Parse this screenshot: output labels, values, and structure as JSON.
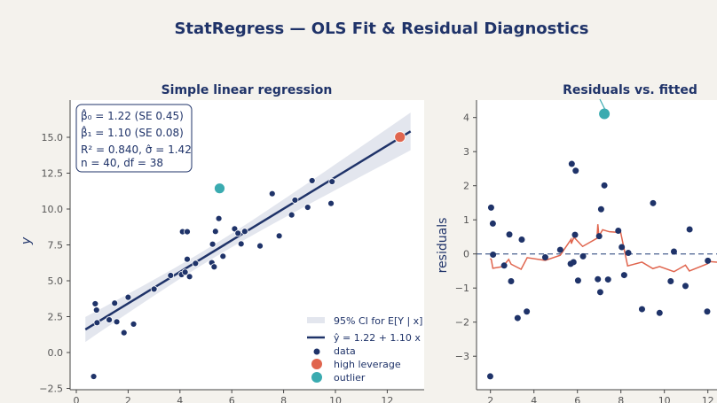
{
  "title": "StatRegress — OLS Fit & Residual Diagnostics",
  "colors": {
    "navy": "#1f3369",
    "high_leverage": "#e0654e",
    "outlier": "#3aabb0",
    "band": "#e3e6ee",
    "lowess": "#e0654e",
    "background": "#f4f2ed"
  },
  "chart_data": [
    {
      "type": "scatter",
      "title": "Simple linear regression",
      "xlabel": "",
      "ylabel": "y",
      "xlim": [
        -0.3,
        13.6
      ],
      "ylim": [
        -2.6,
        17.6
      ],
      "xticks": [
        "0",
        "2",
        "4",
        "6",
        "8",
        "10",
        "12"
      ],
      "xtick_values": [
        0,
        2,
        4,
        6,
        8,
        10,
        12
      ],
      "yticks": [
        "−2.5",
        "0.0",
        "2.5",
        "5.0",
        "7.5",
        "10.0",
        "12.5",
        "15.0"
      ],
      "ytick_values": [
        -2.5,
        0,
        2.5,
        5,
        7.5,
        10,
        12.5,
        15
      ],
      "stats_box": [
        "β̂₀ = 1.22 (SE 0.45)",
        "β̂₁ = 1.10 (SE 0.08)",
        "R² = 0.840,  σ̂ = 1.42",
        "n = 40,  df = 38"
      ],
      "fit": {
        "intercept": 1.22,
        "slope": 1.1,
        "sigma": 1.42,
        "x_range": [
          0.35,
          12.9
        ]
      },
      "legend": [
        "95% CI for E[Y | x]",
        "ŷ = 1.22 + 1.10 x",
        "data",
        "high leverage",
        "outlier"
      ],
      "legend_position": "lower-right",
      "series": [
        {
          "name": "data",
          "points": [
            [
              0.73,
              3.4
            ],
            [
              0.78,
              2.96
            ],
            [
              0.8,
              2.08
            ],
            [
              0.67,
              -1.67
            ],
            [
              1.27,
              2.28
            ],
            [
              1.48,
              3.44
            ],
            [
              1.56,
              2.14
            ],
            [
              1.84,
              1.38
            ],
            [
              2.0,
              3.85
            ],
            [
              2.21,
              1.98
            ],
            [
              3.0,
              4.42
            ],
            [
              3.64,
              5.37
            ],
            [
              4.06,
              5.43
            ],
            [
              4.2,
              5.6
            ],
            [
              4.37,
              5.29
            ],
            [
              4.1,
              8.42
            ],
            [
              4.28,
              8.42
            ],
            [
              4.28,
              6.5
            ],
            [
              4.6,
              6.21
            ],
            [
              5.23,
              6.26
            ],
            [
              5.32,
              5.97
            ],
            [
              5.26,
              7.55
            ],
            [
              5.37,
              8.44
            ],
            [
              5.5,
              9.34
            ],
            [
              5.66,
              6.71
            ],
            [
              6.11,
              8.62
            ],
            [
              6.24,
              8.31
            ],
            [
              6.36,
              7.57
            ],
            [
              6.5,
              8.44
            ],
            [
              7.09,
              7.43
            ],
            [
              7.56,
              11.07
            ],
            [
              7.83,
              8.13
            ],
            [
              8.31,
              9.59
            ],
            [
              8.44,
              10.62
            ],
            [
              8.93,
              10.12
            ],
            [
              9.1,
              11.98
            ],
            [
              9.83,
              10.39
            ],
            [
              9.87,
              11.91
            ]
          ]
        },
        {
          "name": "high leverage",
          "points": [
            [
              12.49,
              15.02
            ]
          ]
        },
        {
          "name": "outlier",
          "points": [
            [
              5.53,
              11.44
            ]
          ]
        }
      ]
    },
    {
      "type": "scatter",
      "title": "Residuals vs. fitted",
      "xlabel": "",
      "ylabel": "residuals",
      "xlim": [
        1.3,
        13.4
      ],
      "ylim": [
        -3.95,
        4.5
      ],
      "xticks": [
        "2",
        "4",
        "6",
        "8",
        "10",
        "12"
      ],
      "xtick_values": [
        2,
        4,
        6,
        8,
        10,
        12
      ],
      "yticks": [
        "−3",
        "−2",
        "−1",
        "0",
        "1",
        "2",
        "3",
        "4"
      ],
      "ytick_values": [
        -3,
        -2,
        -1,
        0,
        1,
        2,
        3,
        4
      ],
      "reference_line": 0,
      "series": [
        {
          "name": "data",
          "points": [
            [
              2.03,
              1.36
            ],
            [
              2.11,
              0.89
            ],
            [
              2.12,
              -0.02
            ],
            [
              1.99,
              -3.59
            ],
            [
              2.63,
              -0.34
            ],
            [
              2.87,
              0.57
            ],
            [
              2.95,
              -0.8
            ],
            [
              3.25,
              -1.88
            ],
            [
              3.44,
              0.42
            ],
            [
              3.67,
              -1.69
            ],
            [
              4.52,
              -0.1
            ],
            [
              5.21,
              0.12
            ],
            [
              5.74,
              2.64
            ],
            [
              5.92,
              2.44
            ],
            [
              5.89,
              0.56
            ],
            [
              5.69,
              -0.29
            ],
            [
              5.82,
              -0.24
            ],
            [
              6.03,
              -0.78
            ],
            [
              6.26,
              -0.07
            ],
            [
              6.94,
              -0.74
            ],
            [
              7.0,
              0.52
            ],
            [
              7.05,
              -1.12
            ],
            [
              7.09,
              1.31
            ],
            [
              7.24,
              2.01
            ],
            [
              7.41,
              -0.75
            ],
            [
              7.88,
              0.68
            ],
            [
              8.04,
              0.2
            ],
            [
              8.15,
              -0.62
            ],
            [
              8.34,
              0.03
            ],
            [
              8.97,
              -1.62
            ],
            [
              9.48,
              1.49
            ],
            [
              9.78,
              -1.73
            ],
            [
              10.29,
              -0.8
            ],
            [
              10.44,
              0.07
            ],
            [
              10.97,
              -0.94
            ],
            [
              11.16,
              0.72
            ],
            [
              11.97,
              -1.69
            ],
            [
              12.0,
              -0.2
            ]
          ]
        },
        {
          "name": "outlier",
          "points": [
            [
              7.24,
              4.11
            ]
          ]
        },
        {
          "name": "lowess",
          "points": [
            [
              1.99,
              -0.13
            ],
            [
              2.04,
              -0.17
            ],
            [
              2.11,
              -0.42
            ],
            [
              2.57,
              -0.37
            ],
            [
              2.84,
              -0.16
            ],
            [
              2.95,
              -0.3
            ],
            [
              3.41,
              -0.45
            ],
            [
              3.69,
              -0.11
            ],
            [
              4.52,
              -0.19
            ],
            [
              5.21,
              -0.04
            ],
            [
              5.71,
              0.43
            ],
            [
              5.72,
              0.3
            ],
            [
              5.84,
              0.49
            ],
            [
              6.24,
              0.22
            ],
            [
              6.9,
              0.46
            ],
            [
              6.94,
              0.87
            ],
            [
              6.99,
              0.52
            ],
            [
              7.16,
              0.71
            ],
            [
              7.47,
              0.65
            ],
            [
              7.99,
              0.63
            ],
            [
              8.31,
              -0.35
            ],
            [
              8.97,
              -0.24
            ],
            [
              9.47,
              -0.43
            ],
            [
              9.78,
              -0.37
            ],
            [
              10.44,
              -0.52
            ],
            [
              10.97,
              -0.33
            ],
            [
              11.15,
              -0.5
            ],
            [
              11.98,
              -0.29
            ],
            [
              12.0,
              -0.22
            ],
            [
              12.42,
              -0.24
            ],
            [
              13.0,
              -0.26
            ]
          ]
        }
      ]
    }
  ]
}
